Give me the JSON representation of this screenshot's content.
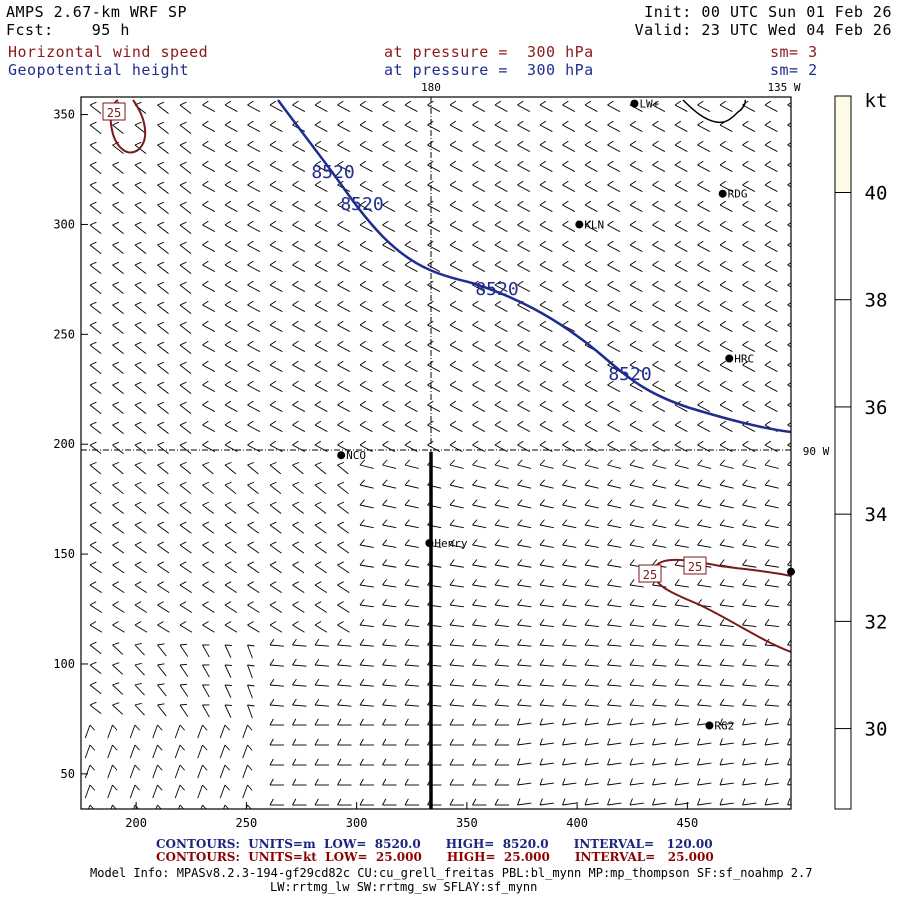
{
  "header": {
    "model": "AMPS 2.67-km WRF SP",
    "fcst_label": "Fcst:",
    "fcst_value": "95 h",
    "init": "Init: 00 UTC Sun 01 Feb 26",
    "valid": "Valid: 23 UTC Wed 04 Feb 26",
    "field1": "Horizontal wind speed",
    "field1_level": "at pressure =  300 hPa",
    "field1_sm": "sm= 3",
    "field2": "Geopotential height",
    "field2_level": "at pressure =  300 hPa",
    "field2_sm": "sm= 2"
  },
  "map": {
    "meridian_labels": [
      "180",
      "135 W",
      "90 W"
    ],
    "x_ticks": [
      "200",
      "250",
      "300",
      "350",
      "400",
      "450"
    ],
    "y_ticks": [
      "350",
      "300",
      "250",
      "200",
      "150",
      "100",
      "50"
    ],
    "x_range": [
      175,
      497
    ],
    "y_range": [
      34,
      358
    ],
    "colors": {
      "height_contour": "#1f2d8f",
      "speed_contour": "#7a1a1a",
      "barb": "#000000"
    },
    "height_contour_label": "8520",
    "speed_contour_label": "25",
    "stations": [
      {
        "name": "LW+",
        "x": 426,
        "y": 355
      },
      {
        "name": "RDG",
        "x": 466,
        "y": 314
      },
      {
        "name": "KLN",
        "x": 401,
        "y": 300
      },
      {
        "name": "HRC",
        "x": 469,
        "y": 239
      },
      {
        "name": "NCO",
        "x": 293,
        "y": 195
      },
      {
        "name": "Henry",
        "x": 333,
        "y": 155
      },
      {
        "name": "RG2",
        "x": 460,
        "y": 72
      },
      {
        "name": "",
        "x": 497,
        "y": 142
      }
    ]
  },
  "colorbar": {
    "unit": "kt",
    "ticks": [
      "40",
      "38",
      "36",
      "34",
      "32",
      "30"
    ],
    "range": [
      28.5,
      41.8
    ],
    "fill_above": 40,
    "fill_color": "#fffbe6"
  },
  "footer": {
    "contours1": "CONTOURS:  UNITS=m  LOW=  8520.0      HIGH=  8520.0      INTERVAL=   120.00",
    "contours2": "CONTOURS:  UNITS=kt  LOW=  25.000      HIGH=  25.000      INTERVAL=   25.000",
    "model_info": "Model Info: MPASv8.2.3-194-gf29cd82c CU:cu_grell_freitas PBL:bl_mynn MP:mp_thompson SF:sf_noahmp 2.7",
    "model_info2": "LW:rrtmg_lw SW:rrtmg_sw SFLAY:sf_mynn"
  }
}
